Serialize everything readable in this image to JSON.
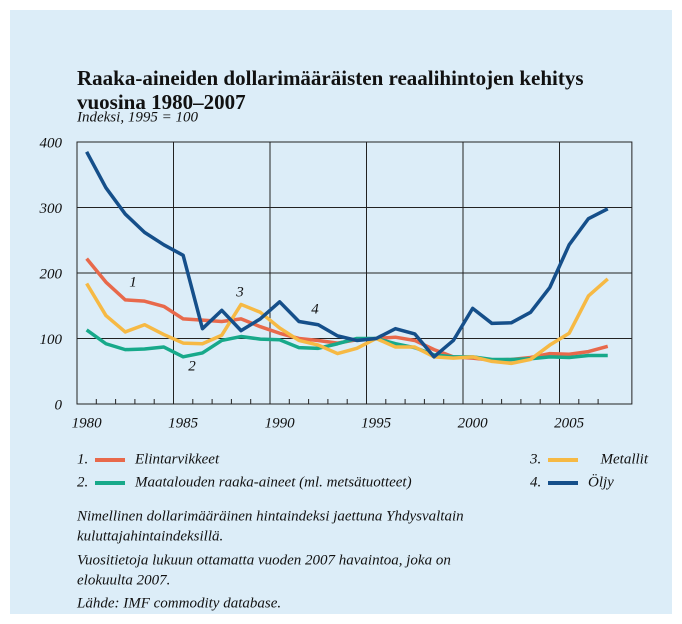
{
  "chart_data": {
    "type": "line",
    "title": [
      "Raaka-aineiden dollarimääräisten reaalihintojen kehitys",
      "vuosina 1980–2007"
    ],
    "subtitle": "Indeksi, 1995 = 100",
    "categories": [
      "1980",
      null,
      null,
      null,
      null,
      "1985",
      null,
      null,
      null,
      null,
      "1990",
      null,
      null,
      null,
      null,
      "1995",
      null,
      null,
      null,
      null,
      "2000",
      null,
      null,
      null,
      null,
      "2005",
      null,
      null
    ],
    "ylim": [
      0,
      400
    ],
    "yticks": [
      0,
      100,
      200,
      300,
      400
    ],
    "grid": true,
    "series": [
      {
        "name": "Elintarvikkeet",
        "number": "1.",
        "label": "1",
        "color": "#e8694b",
        "values": [
          222,
          186,
          159,
          157,
          149,
          130,
          128,
          126,
          130,
          118,
          108,
          100,
          97,
          93,
          98,
          100,
          102,
          97,
          83,
          72,
          70,
          67,
          68,
          71,
          77,
          76,
          80,
          88
        ]
      },
      {
        "name": "Maatalouden raaka-aineet (ml. metsätuotteet)",
        "number": "2.",
        "label": "2",
        "color": "#17a98a",
        "values": [
          113,
          92,
          83,
          84,
          87,
          72,
          78,
          97,
          103,
          99,
          98,
          86,
          85,
          92,
          100,
          100,
          92,
          86,
          75,
          72,
          72,
          68,
          68,
          69,
          72,
          71,
          74,
          74
        ]
      },
      {
        "name": "Metallit",
        "number": "3.",
        "label": "3",
        "color": "#f6b944",
        "values": [
          184,
          135,
          110,
          121,
          106,
          93,
          92,
          105,
          152,
          140,
          116,
          97,
          90,
          77,
          85,
          100,
          87,
          87,
          72,
          70,
          72,
          65,
          62,
          68,
          90,
          108,
          165,
          191
        ]
      },
      {
        "name": "Öljy",
        "number": "4.",
        "label": "4",
        "color": "#154f8a",
        "values": [
          385,
          330,
          290,
          262,
          243,
          227,
          115,
          143,
          112,
          130,
          156,
          126,
          121,
          104,
          97,
          100,
          115,
          107,
          72,
          97,
          146,
          123,
          124,
          140,
          178,
          243,
          283,
          298
        ]
      }
    ],
    "notes": [
      "Nimellinen dollarimääräinen hintaindeksi jaettuna Yhdysvaltain",
      "kuluttajahintaindeksillä.",
      "Vuositietoja lukuun ottamatta vuoden 2007 havaintoa, joka on",
      "elokuulta 2007.",
      "Lähde: IMF commodity database."
    ]
  }
}
